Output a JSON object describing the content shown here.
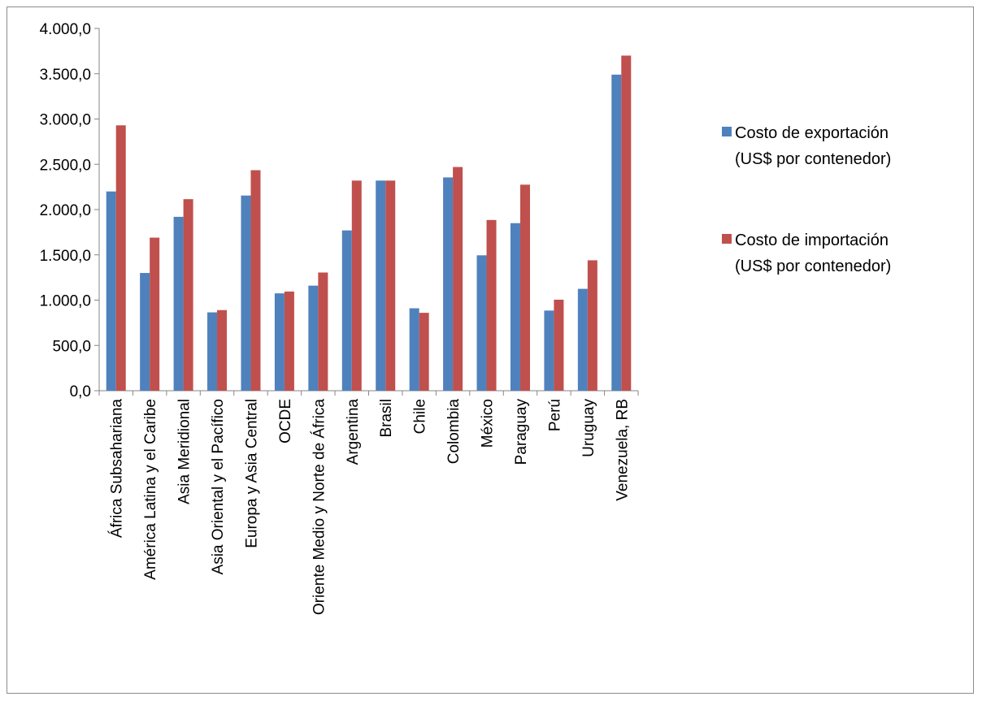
{
  "chart_data": {
    "type": "bar",
    "title": "",
    "xlabel": "",
    "ylabel": "",
    "ylim": [
      0,
      4000
    ],
    "yticks": [
      0,
      500,
      1000,
      1500,
      2000,
      2500,
      3000,
      3500,
      4000
    ],
    "ytick_labels": [
      "0,0",
      "500,0",
      "1.000,0",
      "1.500,0",
      "2.000,0",
      "2.500,0",
      "3.000,0",
      "3.500,0",
      "4.000,0"
    ],
    "grid": false,
    "legend_position": "right",
    "categories": [
      "África Subsahariana",
      "América Latina y el Caribe",
      "Asia Meridional",
      "Asia Oriental y el Pacífico",
      "Europa y Asia Central",
      "OCDE",
      "Oriente Medio y Norte de África",
      "Argentina",
      "Brasil",
      "Chile",
      "Colombia",
      "México",
      "Paraguay",
      "Perú",
      "Uruguay",
      "Venezuela, RB"
    ],
    "series": [
      {
        "name": "Costo de exportación (US$ por contenedor)",
        "legend_lines": [
          "Costo de exportación",
          "(US$ por contenedor)"
        ],
        "color": "#4F81BD",
        "values": [
          2200,
          1300,
          1920,
          865,
          2155,
          1075,
          1160,
          1770,
          2320,
          910,
          2355,
          1495,
          1850,
          885,
          1125,
          3490
        ]
      },
      {
        "name": "Costo de importación (US$ por contenedor)",
        "legend_lines": [
          "Costo de importación",
          "(US$ por contenedor)"
        ],
        "color": "#C0504D",
        "values": [
          2930,
          1690,
          2115,
          890,
          2435,
          1095,
          1305,
          2320,
          2320,
          860,
          2470,
          1885,
          2275,
          1005,
          1440,
          3700
        ]
      }
    ]
  }
}
